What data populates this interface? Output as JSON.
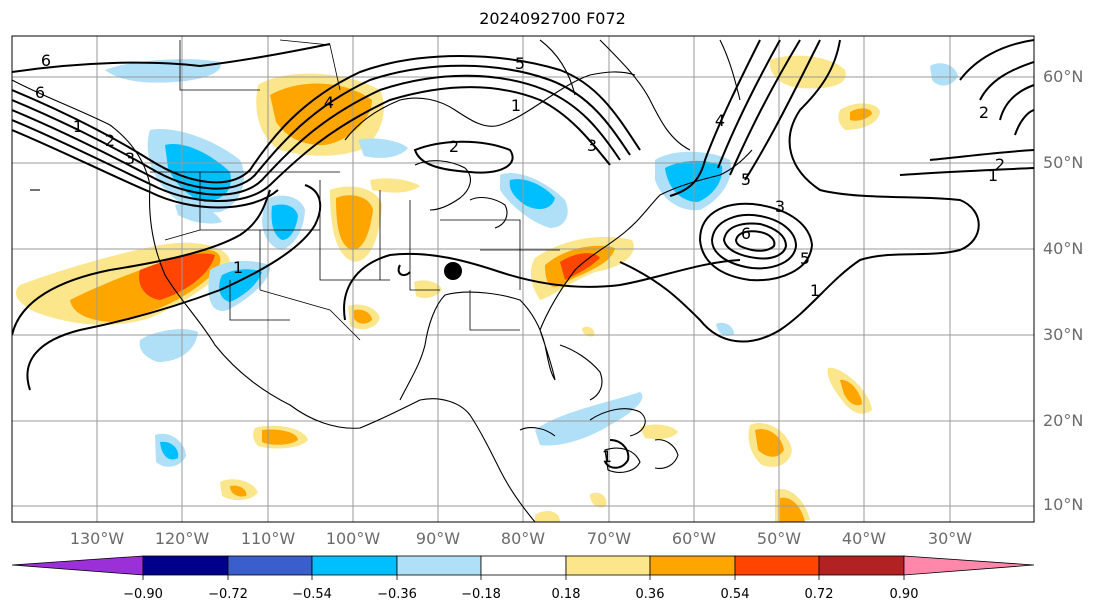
{
  "title": "2024092700 F072",
  "map": {
    "lat_labels": [
      "60°N",
      "50°N",
      "40°N",
      "30°N",
      "20°N",
      "10°N"
    ],
    "lon_labels": [
      "130°W",
      "120°W",
      "110°W",
      "100°W",
      "90°W",
      "80°W",
      "70°W",
      "60°W",
      "50°W",
      "40°W",
      "30°W"
    ],
    "contour_labels": [
      "6",
      "1",
      "2",
      "3",
      "4",
      "5",
      "6",
      "1",
      "2",
      "3",
      "4",
      "5",
      "1",
      "2",
      "3",
      "5",
      "6",
      "2",
      "1",
      "1",
      "1"
    ],
    "marker": "point"
  },
  "colorbar": {
    "ticks": [
      "−0.90",
      "−0.72",
      "−0.54",
      "−0.36",
      "−0.18",
      "0.18",
      "0.36",
      "0.54",
      "0.72",
      "0.90"
    ],
    "colors": [
      "#9b30d9",
      "#00008b",
      "#3a5fcd",
      "#00bfff",
      "#b0e0f8",
      "#ffffff",
      "#fce68c",
      "#ffa500",
      "#ff4500",
      "#b22222",
      "#ff88aa"
    ]
  }
}
